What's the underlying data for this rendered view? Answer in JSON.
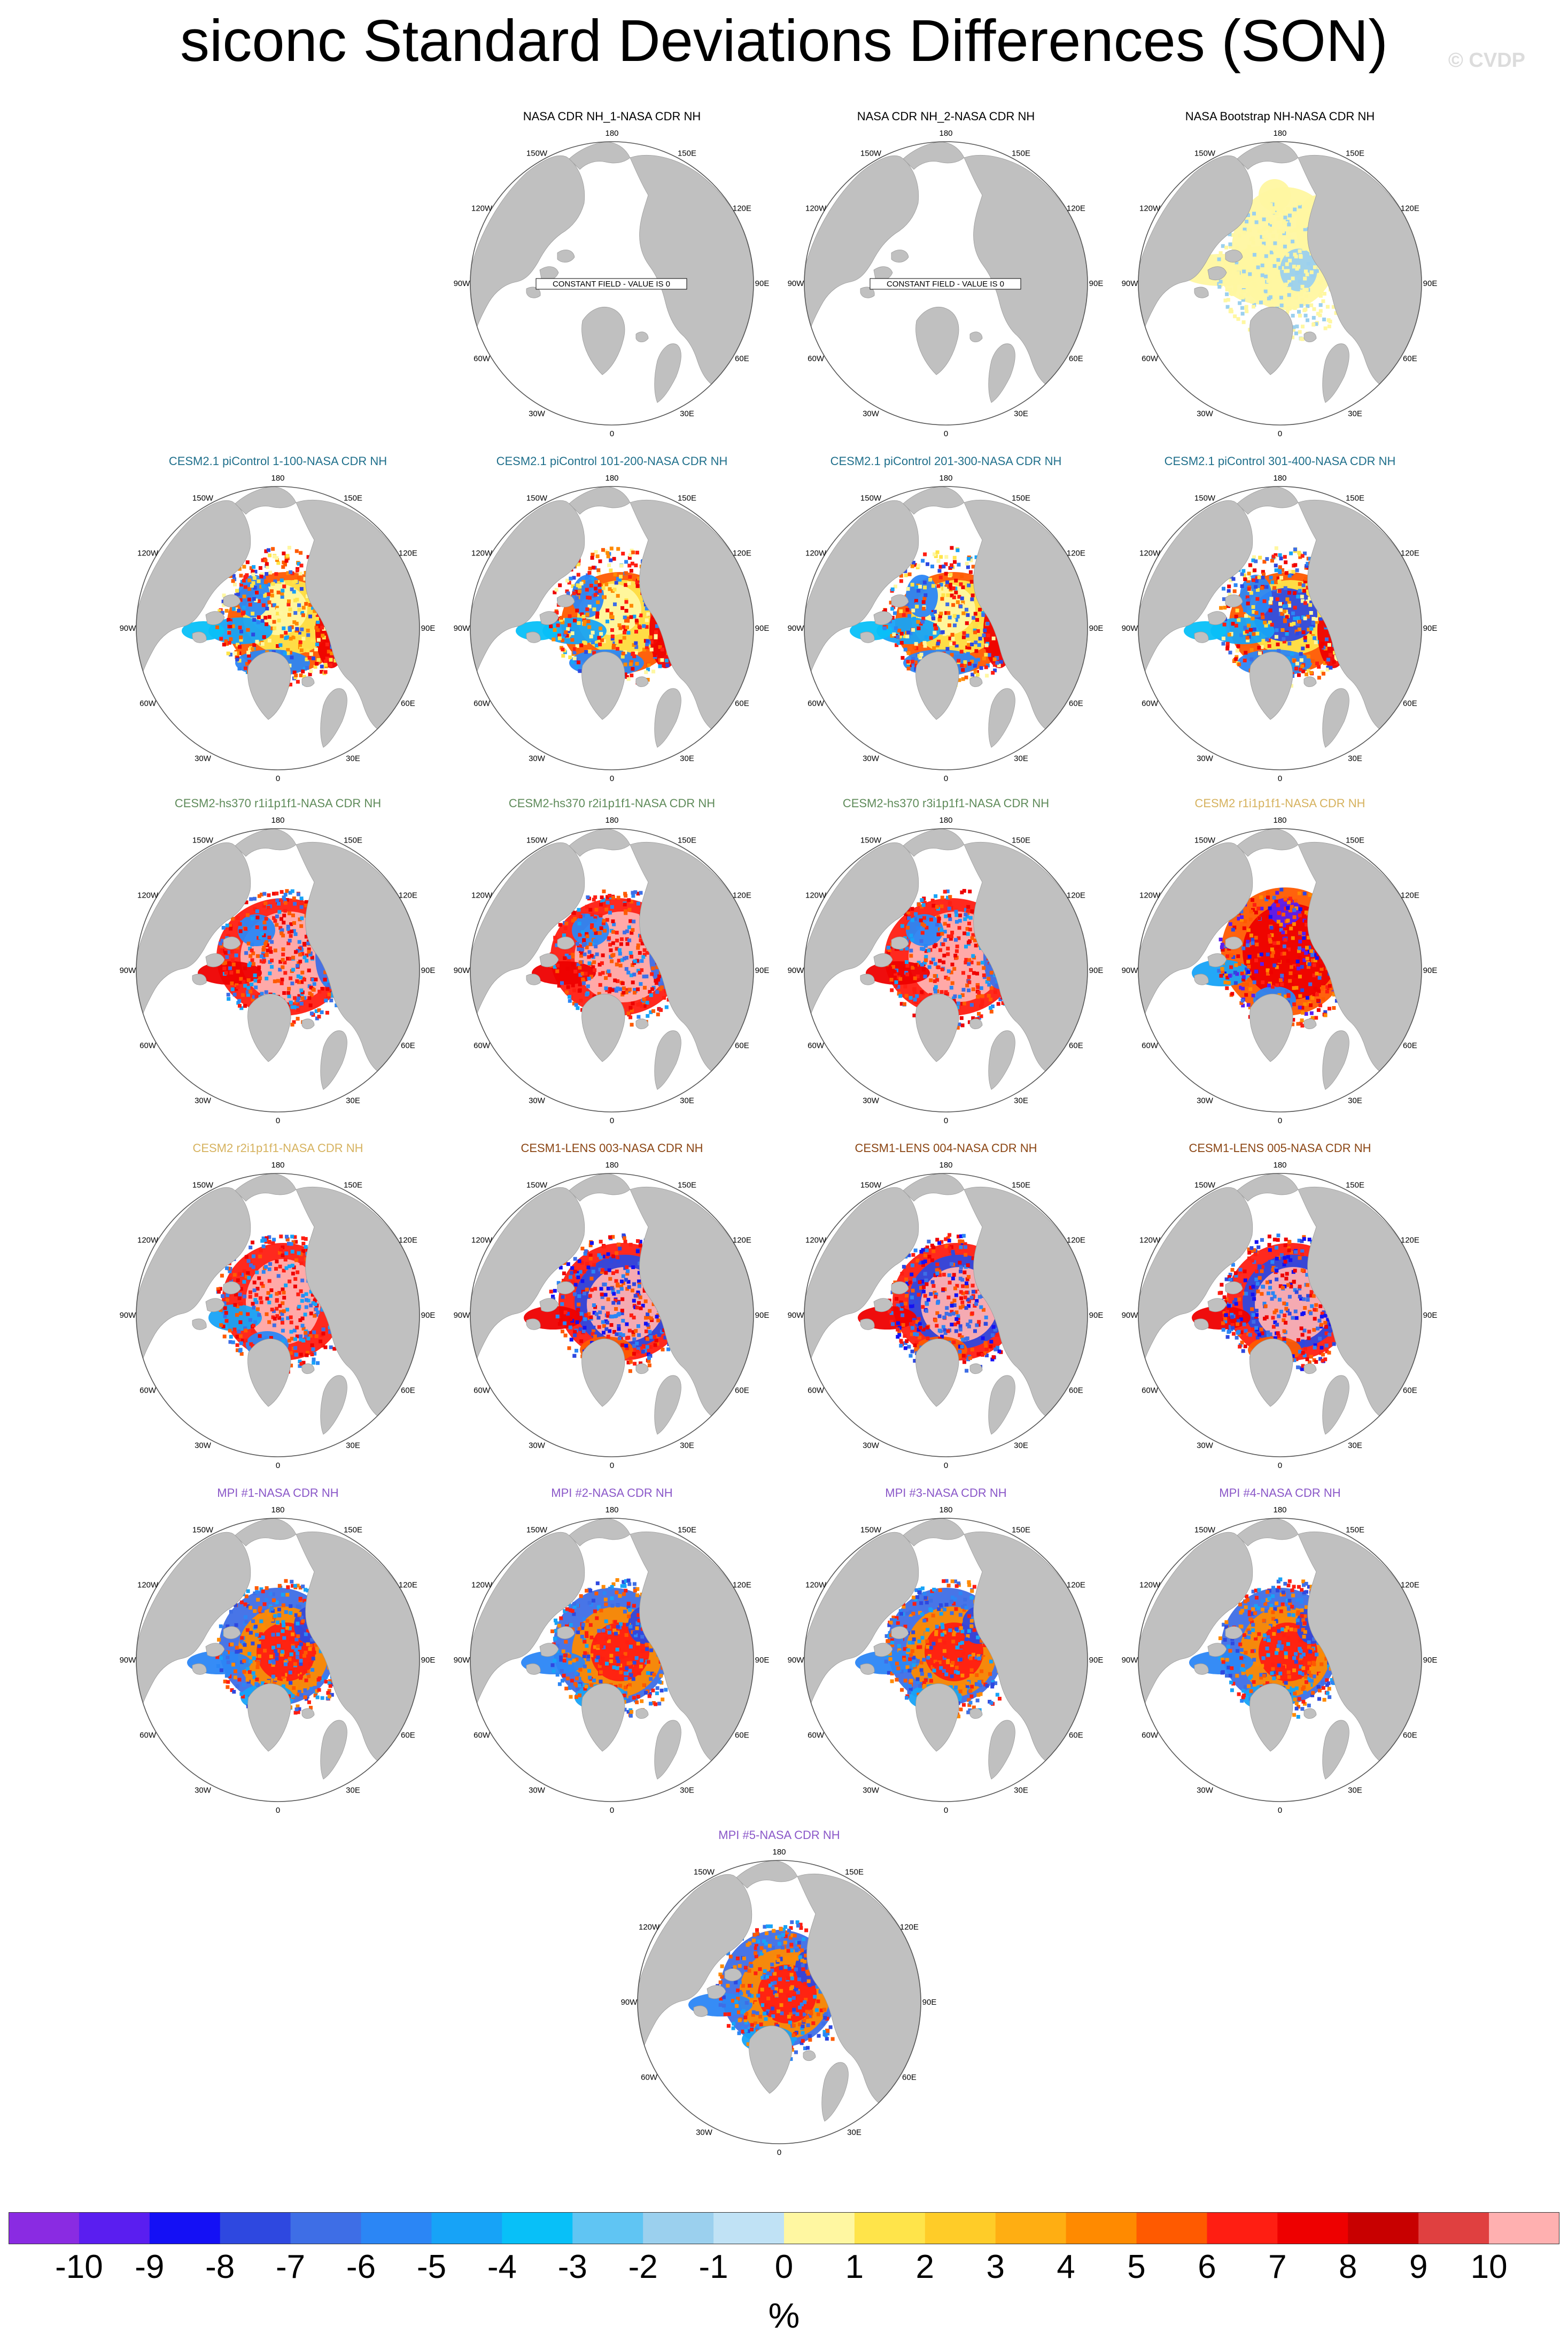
{
  "title": "siconc Standard Deviations Differences (SON)",
  "watermark": "© CVDP",
  "longitude_labels": {
    "lon180": "180",
    "lon150w": "150W",
    "lon150e": "150E",
    "lon120w": "120W",
    "lon120e": "120E",
    "lon90w": "90W",
    "lon90e": "90E",
    "lon60w": "60W",
    "lon60e": "60E",
    "lon30w": "30W",
    "lon30e": "30E",
    "lon0": "0"
  },
  "colors": {
    "land": "#c0c0c0",
    "ocean": "#ffffff",
    "title_black": "#000000",
    "cesm21_picontrol": "#1f6f8b",
    "cesm2_hs370": "#5f8b5a",
    "cesm2_r_i1p1f1": "#d6b25e",
    "cesm1_lens": "#8b4513",
    "mpi": "#8a57c8"
  },
  "colorbar": {
    "labels": [
      "-10",
      "-9",
      "-8",
      "-7",
      "-6",
      "-5",
      "-4",
      "-3",
      "-2",
      "-1",
      "0",
      "1",
      "2",
      "3",
      "4",
      "5",
      "6",
      "7",
      "8",
      "9",
      "10"
    ],
    "colors": [
      "#8a2be2",
      "#5a1ef0",
      "#1410f5",
      "#2e48e0",
      "#3e6ee6",
      "#2b86f5",
      "#17a3f7",
      "#08c0f8",
      "#60c5f3",
      "#9bd0ee",
      "#c0e2f5",
      "#fff7a1",
      "#ffe44a",
      "#ffcc28",
      "#ffae12",
      "#ff8a00",
      "#ff5a00",
      "#ff1e12",
      "#ee0000",
      "#c80000",
      "#e04040",
      "#ffb0b0"
    ],
    "unit": "%"
  },
  "panels": [
    {
      "title": "NASA CDR NH_1-NASA CDR NH",
      "color_key": "title_black",
      "pattern": "constant",
      "note": "CONSTANT FIELD - VALUE IS 0"
    },
    {
      "title": "NASA CDR NH_2-NASA CDR NH",
      "color_key": "title_black",
      "pattern": "constant",
      "note": "CONSTANT FIELD - VALUE IS 0"
    },
    {
      "title": "NASA Bootstrap NH-NASA CDR NH",
      "color_key": "title_black",
      "pattern": "bootstrap"
    },
    {
      "title": "CESM2.1 piControl 1-100-NASA CDR NH",
      "color_key": "cesm21_picontrol",
      "pattern": "picontrol"
    },
    {
      "title": "CESM2.1 piControl 101-200-NASA CDR NH",
      "color_key": "cesm21_picontrol",
      "pattern": "picontrol"
    },
    {
      "title": "CESM2.1 piControl 201-300-NASA CDR NH",
      "color_key": "cesm21_picontrol",
      "pattern": "picontrol"
    },
    {
      "title": "CESM2.1 piControl 301-400-NASA CDR NH",
      "color_key": "cesm21_picontrol",
      "pattern": "picontrol_blue"
    },
    {
      "title": "CESM2-hs370 r1i1p1f1-NASA CDR NH",
      "color_key": "cesm2_hs370",
      "pattern": "pink"
    },
    {
      "title": "CESM2-hs370 r2i1p1f1-NASA CDR NH",
      "color_key": "cesm2_hs370",
      "pattern": "pink"
    },
    {
      "title": "CESM2-hs370 r3i1p1f1-NASA CDR NH",
      "color_key": "cesm2_hs370",
      "pattern": "pink"
    },
    {
      "title": "CESM2 r1i1p1f1-NASA CDR NH",
      "color_key": "cesm2_r_i1p1f1",
      "pattern": "red"
    },
    {
      "title": "CESM2 r2i1p1f1-NASA CDR NH",
      "color_key": "cesm2_r_i1p1f1",
      "pattern": "red_pink"
    },
    {
      "title": "CESM1-LENS 003-NASA CDR NH",
      "color_key": "cesm1_lens",
      "pattern": "lens"
    },
    {
      "title": "CESM1-LENS 004-NASA CDR NH",
      "color_key": "cesm1_lens",
      "pattern": "lens"
    },
    {
      "title": "CESM1-LENS 005-NASA CDR NH",
      "color_key": "cesm1_lens",
      "pattern": "lens"
    },
    {
      "title": "MPI #1-NASA CDR NH",
      "color_key": "mpi",
      "pattern": "mpi"
    },
    {
      "title": "MPI #2-NASA CDR NH",
      "color_key": "mpi",
      "pattern": "mpi"
    },
    {
      "title": "MPI #3-NASA CDR NH",
      "color_key": "mpi",
      "pattern": "mpi"
    },
    {
      "title": "MPI #4-NASA CDR NH",
      "color_key": "mpi",
      "pattern": "mpi"
    },
    {
      "title": "MPI #5-NASA CDR NH",
      "color_key": "mpi",
      "pattern": "mpi"
    }
  ]
}
